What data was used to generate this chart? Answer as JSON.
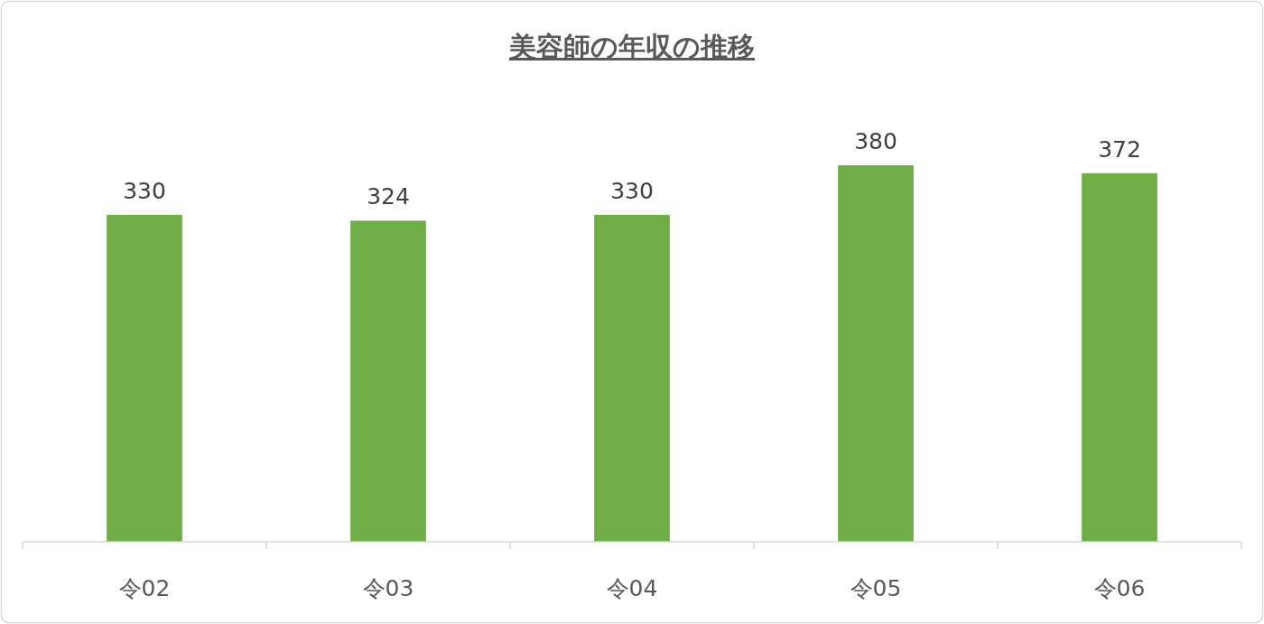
{
  "chart_data": {
    "type": "bar",
    "title": "美容師の年収の推移",
    "categories": [
      "令02",
      "令03",
      "令04",
      "令05",
      "令06"
    ],
    "values": [
      330,
      324,
      330,
      380,
      372
    ],
    "color": "#70ad47",
    "data_labels": true
  }
}
